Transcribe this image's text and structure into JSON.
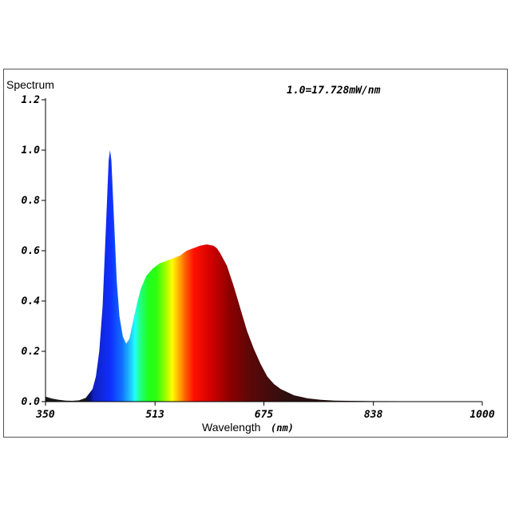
{
  "chart_data": {
    "type": "area",
    "ylabel": "Spectrum",
    "scale_note": "1.0=17.728mW/nm",
    "xlabel": "Wavelength",
    "xlabel_unit": "(nm)",
    "xlim": [
      350,
      1000
    ],
    "ylim": [
      0,
      1.2
    ],
    "x_ticks": [
      "350",
      "513",
      "675",
      "838",
      "1000"
    ],
    "y_ticks": [
      "0.0",
      "0.2",
      "0.4",
      "0.6",
      "0.8",
      "1.0",
      "1.2"
    ],
    "grid": false,
    "x": [
      350,
      360,
      370,
      380,
      390,
      400,
      410,
      420,
      425,
      430,
      435,
      440,
      444,
      446,
      448,
      452,
      456,
      460,
      465,
      470,
      475,
      478,
      482,
      487,
      492,
      500,
      510,
      520,
      530,
      540,
      550,
      560,
      570,
      580,
      590,
      600,
      605,
      610,
      620,
      630,
      640,
      650,
      660,
      670,
      680,
      690,
      700,
      720,
      740,
      760,
      780,
      800,
      840,
      880,
      920,
      960,
      1000
    ],
    "y": [
      0.02,
      0.012,
      0.007,
      0.004,
      0.003,
      0.005,
      0.015,
      0.05,
      0.1,
      0.2,
      0.38,
      0.7,
      0.96,
      1.0,
      0.96,
      0.72,
      0.48,
      0.34,
      0.26,
      0.23,
      0.25,
      0.29,
      0.34,
      0.4,
      0.45,
      0.5,
      0.53,
      0.55,
      0.56,
      0.57,
      0.58,
      0.6,
      0.61,
      0.62,
      0.625,
      0.62,
      0.61,
      0.59,
      0.54,
      0.46,
      0.37,
      0.28,
      0.21,
      0.15,
      0.1,
      0.07,
      0.05,
      0.025,
      0.013,
      0.007,
      0.004,
      0.003,
      0.002,
      0.0015,
      0.001,
      0.001,
      0.0
    ]
  }
}
